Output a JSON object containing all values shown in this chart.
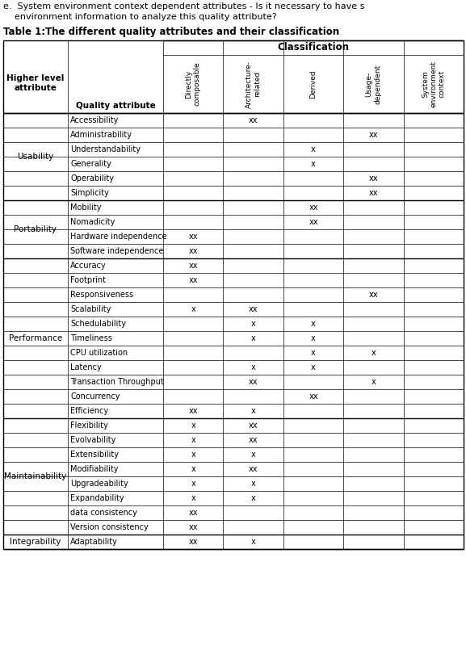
{
  "title_line1": "e.  System environment context dependent attributes - Is it necessary to have s",
  "title_line2": "    environment information to analyze this quality attribute?",
  "table_label": "Table 1:",
  "table_title": "The different quality attributes and their classification",
  "col_headers": [
    "Directly\ncomposable",
    "Architecture-\nrelated",
    "Derived",
    "Usage-\ndependent",
    "System\nenvironment\ncontext"
  ],
  "classification_label": "Classification",
  "higher_level_label": "Higher level\nattribute",
  "quality_attr_label": "Quality attribute",
  "groups": [
    {
      "name": "Usability",
      "rows": [
        "Accessibility",
        "Administrability",
        "Understandability",
        "Generality",
        "Operability",
        "Simplicity"
      ]
    },
    {
      "name": "Portability",
      "rows": [
        "Mobility",
        "Nomadicity",
        "Hardware independence",
        "Software independence"
      ]
    },
    {
      "name": "Performance",
      "rows": [
        "Accuracy",
        "Footprint",
        "Responsiveness",
        "Scalability",
        "Schedulability",
        "Timeliness",
        "CPU utilization",
        "Latency",
        "Transaction Throughput",
        "Concurrency",
        "Efficiency"
      ]
    },
    {
      "name": "Maintainability",
      "rows": [
        "Flexibility",
        "Evolvability",
        "Extensibility",
        "Modifiability",
        "Upgradeability",
        "Expandability",
        "data consistency",
        "Version consistency"
      ]
    },
    {
      "name": "Integrability",
      "rows": [
        "Adaptability"
      ]
    }
  ],
  "cell_data": {
    "Accessibility": [
      "",
      "xx",
      "",
      "",
      ""
    ],
    "Administrability": [
      "",
      "",
      "",
      "xx",
      ""
    ],
    "Understandability": [
      "",
      "",
      "x",
      "",
      ""
    ],
    "Generality": [
      "",
      "",
      "x",
      "",
      ""
    ],
    "Operability": [
      "",
      "",
      "",
      "xx",
      ""
    ],
    "Simplicity": [
      "",
      "",
      "",
      "xx",
      ""
    ],
    "Mobility": [
      "",
      "",
      "xx",
      "",
      ""
    ],
    "Nomadicity": [
      "",
      "",
      "xx",
      "",
      ""
    ],
    "Hardware independence": [
      "xx",
      "",
      "",
      "",
      ""
    ],
    "Software independence": [
      "xx",
      "",
      "",
      "",
      ""
    ],
    "Accuracy": [
      "xx",
      "",
      "",
      "",
      ""
    ],
    "Footprint": [
      "xx",
      "",
      "",
      "",
      ""
    ],
    "Responsiveness": [
      "",
      "",
      "",
      "xx",
      ""
    ],
    "Scalability": [
      "x",
      "xx",
      "",
      "",
      ""
    ],
    "Schedulability": [
      "",
      "x",
      "x",
      "",
      ""
    ],
    "Timeliness": [
      "",
      "x",
      "x",
      "",
      ""
    ],
    "CPU utilization": [
      "",
      "",
      "x",
      "x",
      ""
    ],
    "Latency": [
      "",
      "x",
      "x",
      "",
      ""
    ],
    "Transaction Throughput": [
      "",
      "xx",
      "",
      "x",
      ""
    ],
    "Concurrency": [
      "",
      "",
      "xx",
      "",
      ""
    ],
    "Efficiency": [
      "xx",
      "x",
      "",
      "",
      ""
    ],
    "Flexibility": [
      "x",
      "xx",
      "",
      "",
      ""
    ],
    "Evolvability": [
      "x",
      "xx",
      "",
      "",
      ""
    ],
    "Extensibility": [
      "x",
      "x",
      "",
      "",
      ""
    ],
    "Modifiability": [
      "x",
      "xx",
      "",
      "",
      ""
    ],
    "Upgradeability": [
      "x",
      "x",
      "",
      "",
      ""
    ],
    "Expandability": [
      "x",
      "x",
      "",
      "",
      ""
    ],
    "data consistency": [
      "xx",
      "",
      "",
      "",
      ""
    ],
    "Version consistency": [
      "xx",
      "",
      "",
      "",
      ""
    ],
    "Adaptability": [
      "xx",
      "x",
      "",
      "",
      ""
    ]
  },
  "fig_width": 5.77,
  "fig_height": 8.05,
  "dpi": 100
}
